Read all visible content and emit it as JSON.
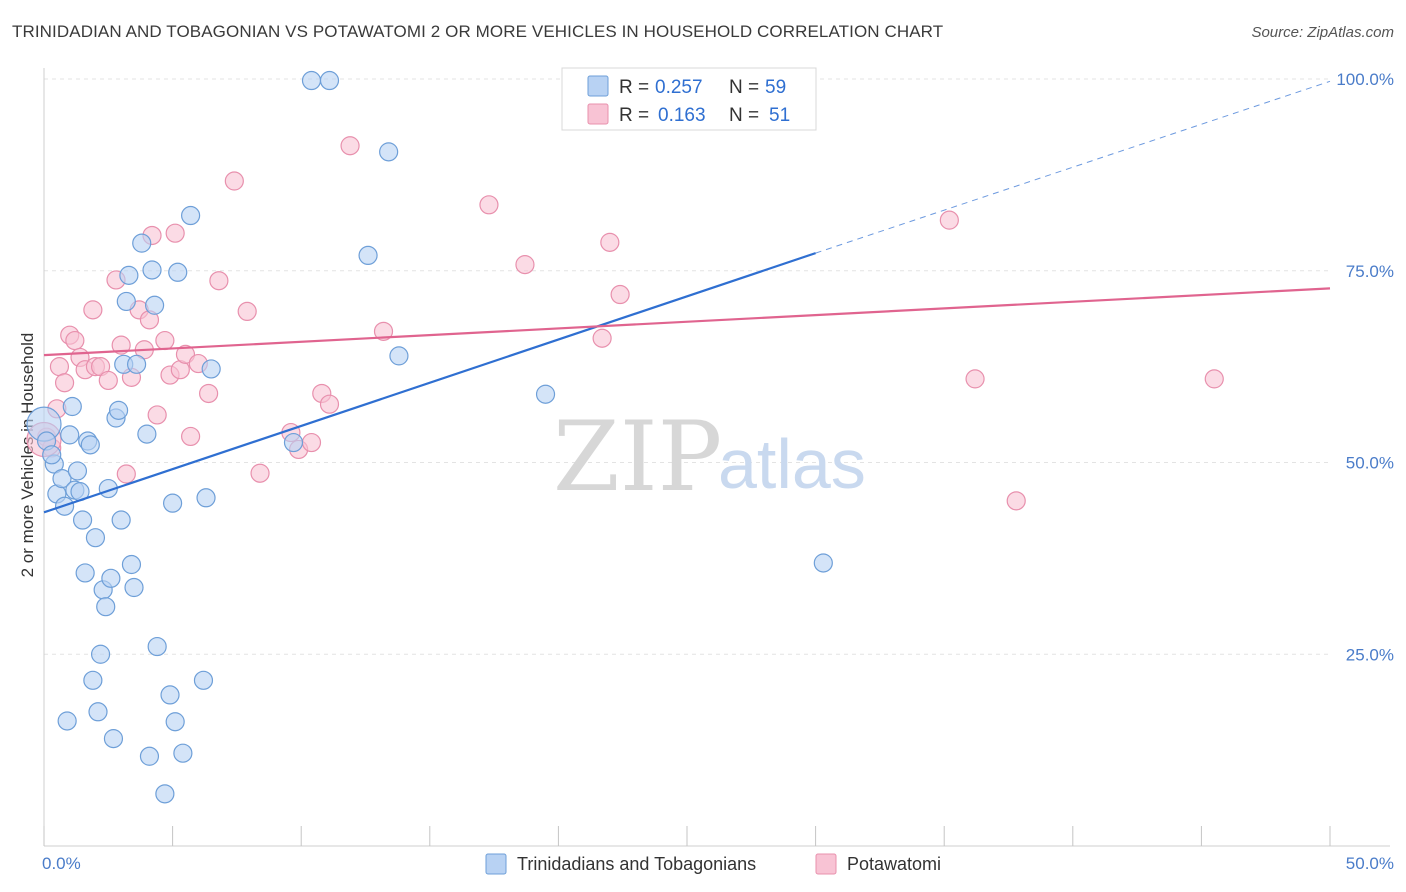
{
  "header": {
    "title": "TRINIDADIAN AND TOBAGONIAN VS POTAWATOMI 2 OR MORE VEHICLES IN HOUSEHOLD CORRELATION CHART",
    "source": "Source: ZipAtlas.com"
  },
  "watermark": {
    "zip": "ZIP",
    "atlas": "atlas"
  },
  "legend_top": {
    "rows": [
      {
        "r_label": "R =",
        "r_value": "0.257",
        "n_label": "N =",
        "n_value": "59"
      },
      {
        "r_label": "R =",
        "r_value": "0.163",
        "n_label": "N =",
        "n_value": "51"
      }
    ]
  },
  "chart_data": {
    "type": "scatter",
    "title": "TRINIDADIAN AND TOBAGONIAN VS POTAWATOMI 2 OR MORE VEHICLES IN HOUSEHOLD CORRELATION CHART",
    "xlabel": "",
    "ylabel": "2 or more Vehicles in Household",
    "xlim": [
      0,
      50
    ],
    "ylim": [
      0,
      100
    ],
    "x_tick_labels": [
      "0.0%",
      "50.0%"
    ],
    "y_tick_values": [
      25,
      50,
      75,
      100
    ],
    "y_tick_labels": [
      "25.0%",
      "50.0%",
      "75.0%",
      "100.0%"
    ],
    "legend_position": "top-center",
    "colors": {
      "blue_fill": "#b8d2f3",
      "blue_stroke": "#6e9fd8",
      "blue_line": "#2f6fd1",
      "pink_fill": "#f8c3d4",
      "pink_stroke": "#e890ad",
      "pink_line": "#e0648f",
      "label": "#4a7cc9"
    },
    "series": [
      {
        "name": "Trinidadians and Tobagonians",
        "r": 0.257,
        "n": 59,
        "trend": {
          "x0": 0,
          "y0": 43.5,
          "x1": 30,
          "y1": 77.3,
          "dash_to_x": 50,
          "dash_to_y": 99.7
        },
        "points": [
          [
            0,
            55
          ],
          [
            0.1,
            52.8
          ],
          [
            0.4,
            49.8
          ],
          [
            0.5,
            45.9
          ],
          [
            0.7,
            47.9
          ],
          [
            0.8,
            44.3
          ],
          [
            1.0,
            53.6
          ],
          [
            1.1,
            57.3
          ],
          [
            1.2,
            46.4
          ],
          [
            1.3,
            48.9
          ],
          [
            1.4,
            46.2
          ],
          [
            1.5,
            42.5
          ],
          [
            1.6,
            35.6
          ],
          [
            1.7,
            52.8
          ],
          [
            1.8,
            52.3
          ],
          [
            1.9,
            21.6
          ],
          [
            2.0,
            40.2
          ],
          [
            2.1,
            17.5
          ],
          [
            2.2,
            25.0
          ],
          [
            2.3,
            33.4
          ],
          [
            2.4,
            31.2
          ],
          [
            2.5,
            46.6
          ],
          [
            2.6,
            34.9
          ],
          [
            2.7,
            14.0
          ],
          [
            2.8,
            55.8
          ],
          [
            2.9,
            56.8
          ],
          [
            3.0,
            42.5
          ],
          [
            3.1,
            62.8
          ],
          [
            3.2,
            71.0
          ],
          [
            3.3,
            74.4
          ],
          [
            3.4,
            36.7
          ],
          [
            3.5,
            33.7
          ],
          [
            3.6,
            62.8
          ],
          [
            3.8,
            78.6
          ],
          [
            4.0,
            53.7
          ],
          [
            4.1,
            11.7
          ],
          [
            4.2,
            75.1
          ],
          [
            4.3,
            70.5
          ],
          [
            4.4,
            26.0
          ],
          [
            4.7,
            6.8
          ],
          [
            4.9,
            19.7
          ],
          [
            5.0,
            44.7
          ],
          [
            5.1,
            16.2
          ],
          [
            5.2,
            74.8
          ],
          [
            5.4,
            12.1
          ],
          [
            5.7,
            82.2
          ],
          [
            6.2,
            21.6
          ],
          [
            6.3,
            45.4
          ],
          [
            6.5,
            62.2
          ],
          [
            9.7,
            52.6
          ],
          [
            10.4,
            99.8
          ],
          [
            11.1,
            99.8
          ],
          [
            12.6,
            77.0
          ],
          [
            13.4,
            90.5
          ],
          [
            13.8,
            63.9
          ],
          [
            19.5,
            58.9
          ],
          [
            30.3,
            36.9
          ],
          [
            0.3,
            51.0
          ],
          [
            0.9,
            16.3
          ]
        ]
      },
      {
        "name": "Potawatomi",
        "r": 0.163,
        "n": 51,
        "trend": {
          "x0": 0,
          "y0": 64.0,
          "x1": 50,
          "y1": 72.7
        },
        "points": [
          [
            0.1,
            53.3
          ],
          [
            0.3,
            51.9
          ],
          [
            0.5,
            57.0
          ],
          [
            0.6,
            62.5
          ],
          [
            0.8,
            60.4
          ],
          [
            1.0,
            66.6
          ],
          [
            1.2,
            65.9
          ],
          [
            1.4,
            63.7
          ],
          [
            1.6,
            62.1
          ],
          [
            1.9,
            69.9
          ],
          [
            2.0,
            62.5
          ],
          [
            2.2,
            62.5
          ],
          [
            2.5,
            60.7
          ],
          [
            2.8,
            73.8
          ],
          [
            3.0,
            65.3
          ],
          [
            3.2,
            48.5
          ],
          [
            3.4,
            61.1
          ],
          [
            3.7,
            69.9
          ],
          [
            3.9,
            64.7
          ],
          [
            4.1,
            68.6
          ],
          [
            4.2,
            79.6
          ],
          [
            4.4,
            56.2
          ],
          [
            4.7,
            65.9
          ],
          [
            4.9,
            61.4
          ],
          [
            5.1,
            79.9
          ],
          [
            5.3,
            62.1
          ],
          [
            5.5,
            64.1
          ],
          [
            5.7,
            53.4
          ],
          [
            6.0,
            62.9
          ],
          [
            6.4,
            59.0
          ],
          [
            6.8,
            73.7
          ],
          [
            7.4,
            86.7
          ],
          [
            7.9,
            69.7
          ],
          [
            8.4,
            48.6
          ],
          [
            9.6,
            53.9
          ],
          [
            9.9,
            51.7
          ],
          [
            10.4,
            52.6
          ],
          [
            10.8,
            59.0
          ],
          [
            11.1,
            57.6
          ],
          [
            11.9,
            91.3
          ],
          [
            13.2,
            67.1
          ],
          [
            17.3,
            83.6
          ],
          [
            18.7,
            75.8
          ],
          [
            21.7,
            66.2
          ],
          [
            22.0,
            78.7
          ],
          [
            22.4,
            71.9
          ],
          [
            35.2,
            81.6
          ],
          [
            36.2,
            60.9
          ],
          [
            37.8,
            45.0
          ],
          [
            45.5,
            60.9
          ],
          [
            0.0,
            53.0
          ]
        ]
      }
    ]
  },
  "bottom_legend": {
    "items": [
      "Trinidadians and Tobagonians",
      "Potawatomi"
    ]
  }
}
